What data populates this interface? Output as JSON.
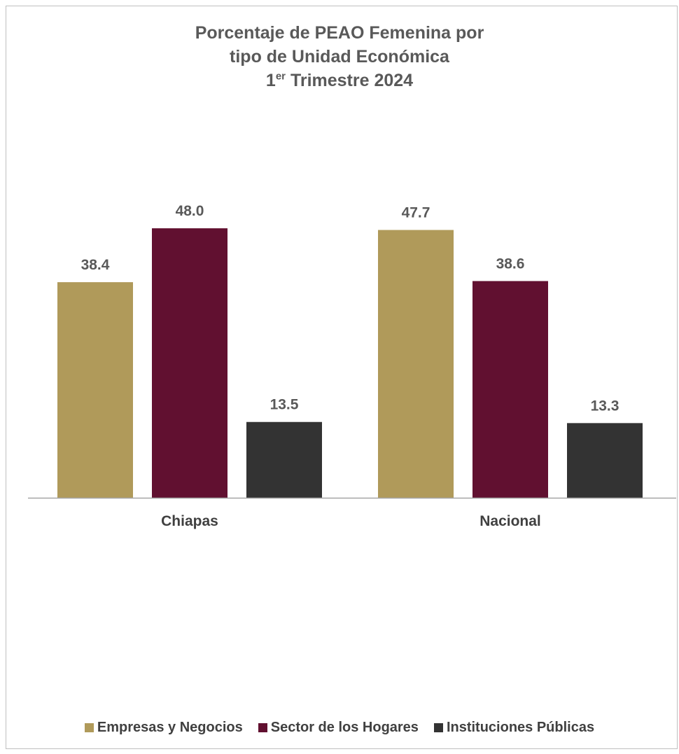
{
  "chart_data": {
    "type": "bar",
    "title_line1": "Porcentaje de PEAO Femenina por",
    "title_line2": "tipo de Unidad Económica",
    "title_line3_prefix": "1",
    "title_line3_sup": "er",
    "title_line3_suffix": " Trimestre 2024",
    "categories": [
      "Chiapas",
      "Nacional"
    ],
    "series": [
      {
        "name": "Empresas y Negocios",
        "color": "#b09a5a",
        "values": [
          38.4,
          47.7
        ]
      },
      {
        "name": "Sector de los Hogares",
        "color": "#611030",
        "values": [
          48.0,
          38.6
        ]
      },
      {
        "name": "Instituciones Públicas",
        "color": "#333333",
        "values": [
          13.5,
          13.3
        ]
      }
    ],
    "ylim": [
      0,
      52.5
    ],
    "grid": false,
    "legend_position": "bottom"
  }
}
